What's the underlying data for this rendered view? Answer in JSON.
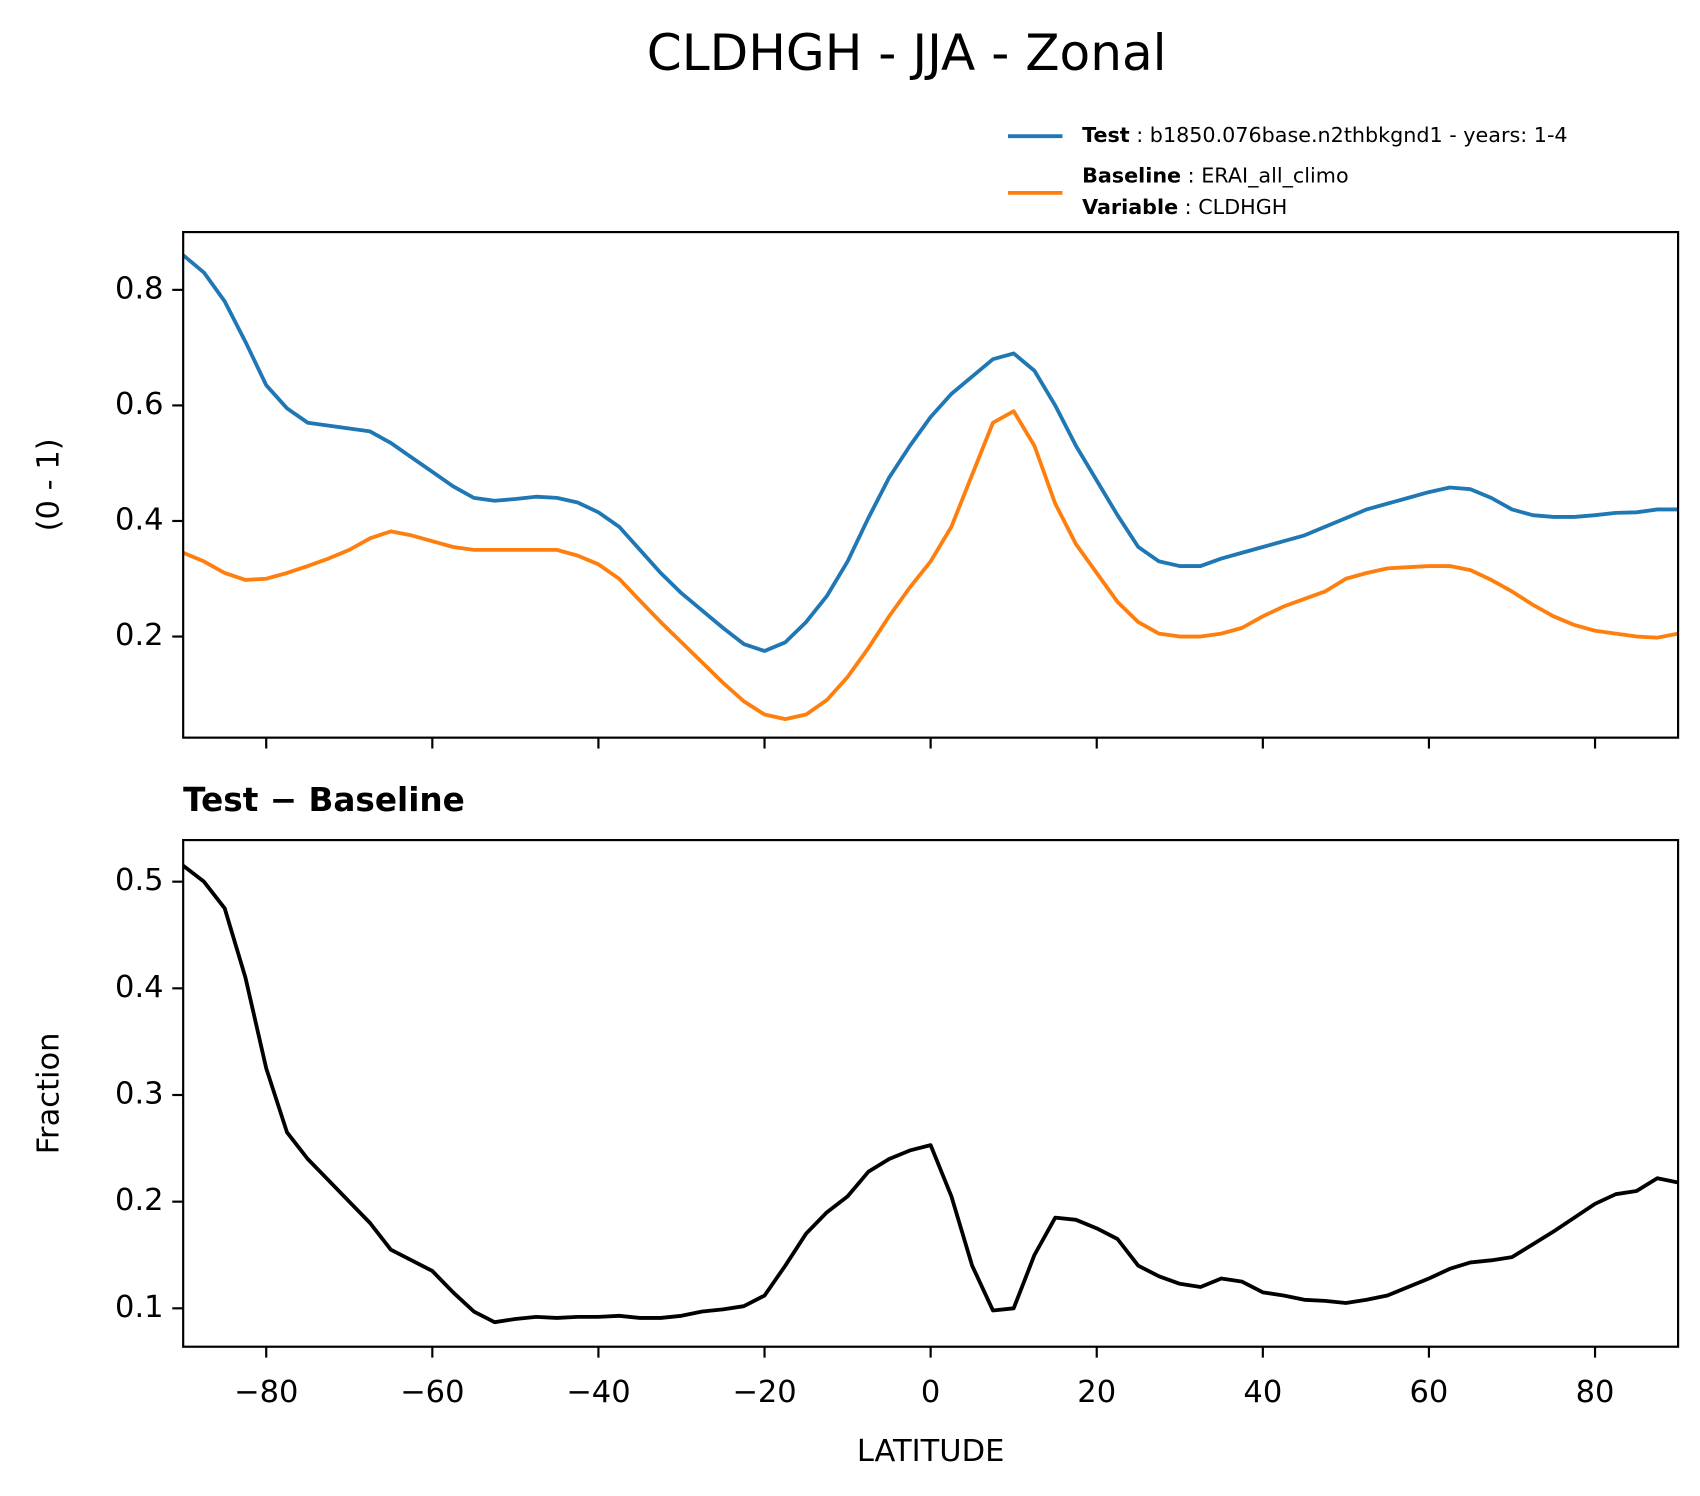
{
  "title": "CLDHGH - JJA - Zonal",
  "chart_data": [
    {
      "type": "line",
      "ylabel": "(0 - 1)",
      "x": [
        -90,
        -87.5,
        -85,
        -82.5,
        -80,
        -77.5,
        -75,
        -72.5,
        -70,
        -67.5,
        -65,
        -62.5,
        -60,
        -57.5,
        -55,
        -52.5,
        -50,
        -47.5,
        -45,
        -42.5,
        -40,
        -37.5,
        -35,
        -32.5,
        -30,
        -27.5,
        -25,
        -22.5,
        -20,
        -17.5,
        -15,
        -12.5,
        -10,
        -7.5,
        -5,
        -2.5,
        0,
        2.5,
        5,
        7.5,
        10,
        12.5,
        15,
        17.5,
        20,
        22.5,
        25,
        27.5,
        30,
        32.5,
        35,
        37.5,
        40,
        42.5,
        45,
        47.5,
        50,
        52.5,
        55,
        57.5,
        60,
        62.5,
        65,
        67.5,
        70,
        72.5,
        75,
        77.5,
        80,
        82.5,
        85,
        87.5,
        90
      ],
      "series": [
        {
          "name": "Test",
          "description": "b1850.076base.n2thbkgnd1 - years: 1-4",
          "color": "#1f77b4",
          "values": [
            0.86,
            0.83,
            0.78,
            0.71,
            0.635,
            0.595,
            0.57,
            0.565,
            0.56,
            0.555,
            0.535,
            0.51,
            0.485,
            0.46,
            0.44,
            0.435,
            0.438,
            0.442,
            0.44,
            0.432,
            0.415,
            0.39,
            0.35,
            0.31,
            0.275,
            0.245,
            0.215,
            0.187,
            0.175,
            0.19,
            0.225,
            0.27,
            0.33,
            0.405,
            0.475,
            0.53,
            0.58,
            0.62,
            0.65,
            0.68,
            0.69,
            0.66,
            0.6,
            0.53,
            0.47,
            0.41,
            0.355,
            0.33,
            0.322,
            0.322,
            0.335,
            0.345,
            0.355,
            0.365,
            0.375,
            0.39,
            0.405,
            0.42,
            0.43,
            0.44,
            0.45,
            0.458,
            0.455,
            0.44,
            0.42,
            0.41,
            0.407,
            0.407,
            0.41,
            0.414,
            0.415,
            0.42,
            0.42
          ]
        },
        {
          "name": "Baseline",
          "description": "ERAI_all_climo",
          "color": "#ff7f0e",
          "values": [
            0.345,
            0.33,
            0.31,
            0.298,
            0.3,
            0.31,
            0.322,
            0.335,
            0.35,
            0.37,
            0.382,
            0.375,
            0.365,
            0.355,
            0.35,
            0.35,
            0.35,
            0.35,
            0.35,
            0.34,
            0.325,
            0.3,
            0.262,
            0.225,
            0.19,
            0.155,
            0.12,
            0.088,
            0.065,
            0.057,
            0.065,
            0.09,
            0.13,
            0.18,
            0.235,
            0.285,
            0.33,
            0.39,
            0.48,
            0.57,
            0.59,
            0.53,
            0.43,
            0.36,
            0.31,
            0.26,
            0.225,
            0.205,
            0.2,
            0.2,
            0.205,
            0.215,
            0.235,
            0.252,
            0.265,
            0.278,
            0.3,
            0.31,
            0.318,
            0.32,
            0.322,
            0.322,
            0.315,
            0.298,
            0.278,
            0.255,
            0.235,
            0.22,
            0.21,
            0.205,
            0.2,
            0.198,
            0.205
          ]
        }
      ],
      "variable": {
        "label": "Variable",
        "value": "CLDHGH"
      },
      "xlim": [
        -90,
        90
      ],
      "xticks": [
        -80,
        -60,
        -40,
        -20,
        0,
        20,
        40,
        60,
        80
      ],
      "ylim": [
        0.025,
        0.9
      ],
      "yticks": [
        0.2,
        0.4,
        0.6,
        0.8
      ]
    },
    {
      "type": "line",
      "title": "Test − Baseline",
      "xlabel": "LATITUDE",
      "ylabel": "Fraction",
      "x": [
        -90,
        -87.5,
        -85,
        -82.5,
        -80,
        -77.5,
        -75,
        -72.5,
        -70,
        -67.5,
        -65,
        -62.5,
        -60,
        -57.5,
        -55,
        -52.5,
        -50,
        -47.5,
        -45,
        -42.5,
        -40,
        -37.5,
        -35,
        -32.5,
        -30,
        -27.5,
        -25,
        -22.5,
        -20,
        -17.5,
        -15,
        -12.5,
        -10,
        -7.5,
        -5,
        -2.5,
        0,
        2.5,
        5,
        7.5,
        10,
        12.5,
        15,
        17.5,
        20,
        22.5,
        25,
        27.5,
        30,
        32.5,
        35,
        37.5,
        40,
        42.5,
        45,
        47.5,
        50,
        52.5,
        55,
        57.5,
        60,
        62.5,
        65,
        67.5,
        70,
        72.5,
        75,
        77.5,
        80,
        82.5,
        85,
        87.5,
        90
      ],
      "color": "#000000",
      "values": [
        0.515,
        0.5,
        0.475,
        0.41,
        0.325,
        0.265,
        0.24,
        0.22,
        0.2,
        0.18,
        0.155,
        0.145,
        0.135,
        0.115,
        0.097,
        0.087,
        0.09,
        0.092,
        0.091,
        0.092,
        0.092,
        0.093,
        0.091,
        0.091,
        0.093,
        0.097,
        0.099,
        0.102,
        0.112,
        0.14,
        0.17,
        0.19,
        0.205,
        0.228,
        0.24,
        0.248,
        0.253,
        0.205,
        0.14,
        0.098,
        0.1,
        0.15,
        0.185,
        0.183,
        0.175,
        0.165,
        0.14,
        0.13,
        0.123,
        0.12,
        0.128,
        0.125,
        0.115,
        0.112,
        0.108,
        0.107,
        0.105,
        0.108,
        0.112,
        0.12,
        0.128,
        0.137,
        0.143,
        0.145,
        0.148,
        0.16,
        0.172,
        0.185,
        0.198,
        0.207,
        0.21,
        0.222,
        0.218
      ],
      "xlim": [
        -90,
        90
      ],
      "xticks": [
        {
          "value": -80,
          "label": "−80"
        },
        {
          "value": -60,
          "label": "−60"
        },
        {
          "value": -40,
          "label": "−40"
        },
        {
          "value": -20,
          "label": "−20"
        },
        0,
        20,
        40,
        60,
        80
      ],
      "ylim": [
        0.064,
        0.539
      ],
      "yticks": [
        0.1,
        0.2,
        0.3,
        0.4,
        0.5
      ]
    }
  ]
}
